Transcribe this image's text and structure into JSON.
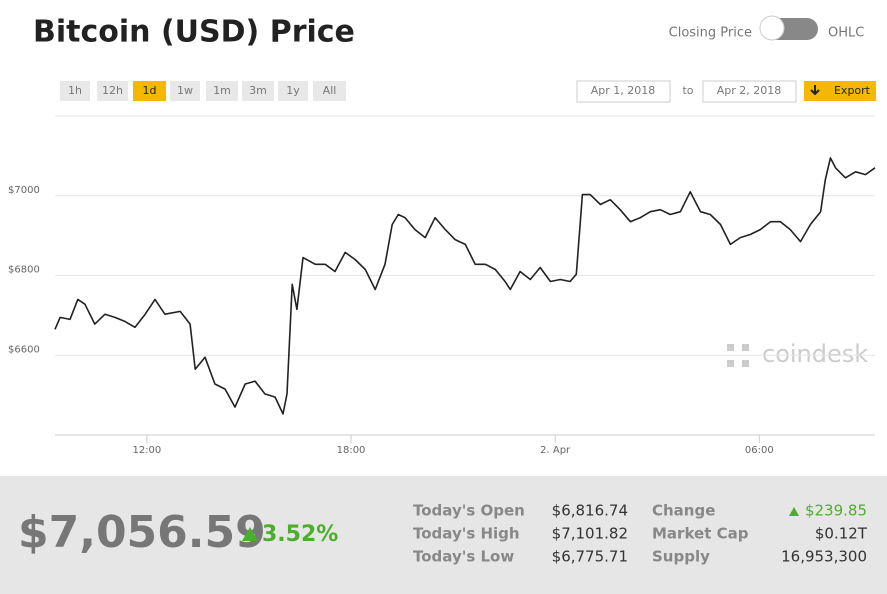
{
  "header": {
    "title": "Bitcoin (USD) Price",
    "toggle_left": "Closing Price",
    "toggle_right": "OHLC"
  },
  "controls": {
    "ranges": [
      "1h",
      "12h",
      "1d",
      "1w",
      "1m",
      "3m",
      "1y",
      "All"
    ],
    "active_range": 2,
    "date_from": "Apr 1, 2018",
    "date_sep": "to",
    "date_to": "Apr 2, 2018",
    "export": "Export"
  },
  "watermark": "coindesk",
  "chart_data": {
    "type": "line",
    "color": "#222222",
    "xlim": [
      9.3,
      33.4
    ],
    "xticks": [
      {
        "value": 12,
        "label": "12:00"
      },
      {
        "value": 18,
        "label": "18:00"
      },
      {
        "value": 24,
        "label": "2. Apr"
      },
      {
        "value": 30,
        "label": "06:00"
      }
    ],
    "ylim": [
      6400,
      7200
    ],
    "yticks": [
      {
        "value": 6600,
        "label": "$6600"
      },
      {
        "value": 6800,
        "label": "$6800"
      },
      {
        "value": 7000,
        "label": "$7000"
      }
    ],
    "grid": true,
    "x": [
      9.3,
      9.45,
      9.74,
      9.97,
      10.18,
      10.47,
      10.77,
      11.06,
      11.35,
      11.65,
      11.95,
      12.24,
      12.53,
      12.98,
      13.27,
      13.42,
      13.71,
      14.0,
      14.3,
      14.59,
      14.89,
      15.18,
      15.47,
      15.77,
      16.0,
      16.12,
      16.27,
      16.41,
      16.59,
      16.95,
      17.24,
      17.53,
      17.83,
      18.12,
      18.42,
      18.71,
      19.0,
      19.21,
      19.39,
      19.59,
      19.88,
      20.18,
      20.47,
      20.77,
      21.06,
      21.36,
      21.65,
      21.95,
      22.24,
      22.53,
      22.68,
      22.97,
      23.27,
      23.56,
      23.86,
      24.15,
      24.44,
      24.62,
      24.8,
      25.03,
      25.33,
      25.62,
      25.91,
      26.21,
      26.5,
      26.8,
      27.09,
      27.38,
      27.68,
      27.97,
      28.27,
      28.56,
      28.86,
      29.15,
      29.44,
      29.74,
      30.03,
      30.33,
      30.62,
      30.91,
      31.21,
      31.5,
      31.8,
      31.94,
      32.09,
      32.24,
      32.53,
      32.83,
      33.12,
      33.4
    ],
    "values": [
      6665,
      6695,
      6690,
      6740,
      6728,
      6678,
      6703,
      6695,
      6685,
      6670,
      6703,
      6740,
      6703,
      6710,
      6678,
      6565,
      6595,
      6528,
      6515,
      6470,
      6528,
      6535,
      6503,
      6495,
      6453,
      6503,
      6778,
      6715,
      6845,
      6828,
      6828,
      6810,
      6858,
      6840,
      6815,
      6765,
      6828,
      6928,
      6953,
      6945,
      6915,
      6895,
      6945,
      6915,
      6890,
      6878,
      6828,
      6828,
      6815,
      6785,
      6765,
      6810,
      6790,
      6820,
      6785,
      6790,
      6785,
      6803,
      7003,
      7003,
      6978,
      6990,
      6965,
      6935,
      6945,
      6960,
      6965,
      6953,
      6960,
      7010,
      6960,
      6953,
      6928,
      6878,
      6895,
      6903,
      6915,
      6935,
      6935,
      6915,
      6885,
      6928,
      6960,
      7040,
      7095,
      7070,
      7045,
      7060,
      7053,
      7070
    ]
  },
  "summary": {
    "price": "$7,056.59",
    "change_pct": "3.52%",
    "stats": [
      {
        "label": "Today's Open",
        "value": "$6,816.74"
      },
      {
        "label": "Today's High",
        "value": "$7,101.82"
      },
      {
        "label": "Today's Low",
        "value": "$6,775.71"
      }
    ],
    "stats2": [
      {
        "label": "Change",
        "value": "$239.85"
      },
      {
        "label": "Market Cap",
        "value": "$0.12T"
      },
      {
        "label": "Supply",
        "value": "16,953,300"
      }
    ]
  }
}
